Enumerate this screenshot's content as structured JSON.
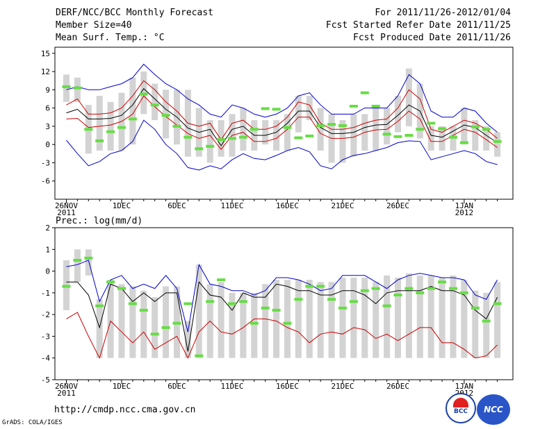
{
  "header": {
    "title": "DERF/NCC/BCC Monthly Forecast",
    "member_size": "Member Size=40",
    "variable": "Mean Surf. Temp.: °C",
    "period": "For 2011/11/26-2012/01/04",
    "refer_date": "Fcst Started Refer Date 2011/11/25",
    "produced_date": "Fcst Produced Date 2011/11/26"
  },
  "footer": {
    "url": "http://cmdp.ncc.cma.gov.cn",
    "credit": "GrADS: COLA/IGES",
    "logo_bcc": "BCC",
    "logo_ncc": "NCC"
  },
  "colors": {
    "max": "#0000cc",
    "mean": "#000000",
    "spread": "#cc0000",
    "box": "#d3d3d3",
    "median": "#66dd44"
  },
  "chart_data": [
    {
      "type": "line",
      "title": "Mean Surf. Temp.: °C",
      "x_tick_labels": [
        "26NOV\n2011",
        "1DEC",
        "6DEC",
        "11DEC",
        "16DEC",
        "21DEC",
        "26DEC",
        "1JAN\n2012"
      ],
      "ylim": [
        -9,
        16
      ],
      "y_ticks": [
        -6,
        -3,
        0,
        3,
        6,
        9,
        12,
        15
      ],
      "days": 40,
      "series": [
        {
          "name": "max",
          "values": [
            0.7,
            -1.5,
            -3.5,
            -2.8,
            -1.5,
            -1,
            0.5,
            4,
            2.5,
            0,
            -1.5,
            -3.8,
            -4.2,
            -3.5,
            -4,
            -2.5,
            -1.5,
            -2.3,
            -2.5,
            -1.8,
            -1,
            -0.5,
            -1.2,
            -3.5,
            -4,
            -2.5,
            -1.8,
            -1.5,
            -1,
            -0.5,
            0.3,
            0.6,
            0.5,
            -2.5,
            -2,
            -1.5,
            -1,
            -1.5,
            -2.8,
            -3.3
          ]
        },
        {
          "name": "q90",
          "values": [
            6.5,
            7.5,
            5,
            5,
            5.2,
            6,
            8,
            10.5,
            9,
            7,
            5.5,
            3.5,
            3,
            3.5,
            0.8,
            3.5,
            4,
            2.5,
            2.5,
            3,
            4.5,
            7,
            6.5,
            3.5,
            2.5,
            2.5,
            2.8,
            3.5,
            4,
            4.2,
            6,
            9,
            7.5,
            2.5,
            2,
            3,
            4,
            3.5,
            2.5,
            1
          ]
        },
        {
          "name": "mean",
          "values": [
            5.2,
            5.8,
            4.2,
            4.2,
            4.3,
            4.8,
            6.5,
            9.2,
            7.5,
            5.8,
            4.5,
            2.7,
            2,
            2.5,
            -0.2,
            2.5,
            3,
            1.5,
            1.5,
            2,
            3.5,
            5.5,
            5.5,
            2.8,
            1.8,
            1.8,
            2,
            2.8,
            3.2,
            3.3,
            4.8,
            6.5,
            5.5,
            1.5,
            1.2,
            2.2,
            3.2,
            2.8,
            1.5,
            0.3
          ]
        },
        {
          "name": "q10",
          "values": [
            4.2,
            4.3,
            2.8,
            3,
            3.2,
            3.8,
            5,
            8,
            6.2,
            4.6,
            3.2,
            1.8,
            1,
            1.5,
            -0.8,
            1.5,
            2,
            0.5,
            0.5,
            1,
            2.5,
            4.5,
            4.5,
            1.8,
            1,
            1,
            1.2,
            2,
            2.4,
            2.5,
            3.8,
            5.5,
            4.2,
            0.5,
            0.5,
            1.5,
            2.5,
            2,
            0.8,
            -0.5
          ]
        },
        {
          "name": "min",
          "values": [
            9,
            9.5,
            9,
            9,
            9.5,
            10,
            11,
            13.2,
            11.5,
            10,
            9,
            7.5,
            6.5,
            5,
            4.5,
            6.5,
            6,
            5,
            4.5,
            5,
            6,
            8,
            8.5,
            6.5,
            5,
            5,
            5,
            6,
            6,
            6,
            8,
            11.5,
            10,
            5.5,
            4.5,
            4.5,
            6,
            5.5,
            3.5,
            2
          ]
        }
      ],
      "boxes": [
        [
          7,
          11.5
        ],
        [
          7,
          11
        ],
        [
          -1.5,
          6.5
        ],
        [
          -1,
          8
        ],
        [
          -1,
          7
        ],
        [
          -1,
          8.5
        ],
        [
          0,
          11
        ],
        [
          5,
          12
        ],
        [
          4,
          10
        ],
        [
          1,
          9
        ],
        [
          0,
          9
        ],
        [
          -2,
          9
        ],
        [
          -2,
          6
        ],
        [
          -3,
          4
        ],
        [
          -2,
          4
        ],
        [
          -2,
          5
        ],
        [
          -1,
          6
        ],
        [
          -1,
          4
        ],
        [
          0,
          4
        ],
        [
          -1,
          4
        ],
        [
          -1,
          5
        ],
        [
          2,
          8
        ],
        [
          4,
          8
        ],
        [
          -1,
          6
        ],
        [
          -3,
          5
        ],
        [
          -3,
          4
        ],
        [
          -2,
          5
        ],
        [
          -1,
          5
        ],
        [
          -1,
          6
        ],
        [
          0,
          6
        ],
        [
          2,
          8
        ],
        [
          3,
          12.5
        ],
        [
          1,
          10
        ],
        [
          -1,
          3
        ],
        [
          -1,
          3
        ],
        [
          -1,
          3
        ],
        [
          0,
          6
        ],
        [
          -1,
          4
        ],
        [
          -1,
          3
        ],
        [
          -2,
          2
        ]
      ],
      "medians": [
        9.5,
        9.3,
        2.5,
        0.6,
        2.1,
        2.8,
        4.2,
        8.3,
        6.5,
        4.8,
        3,
        1.2,
        -0.7,
        -0.3,
        0.8,
        1,
        1.2,
        2.5,
        5.9,
        5.8,
        2.8,
        1.1,
        1.4,
        3.1,
        3.3,
        3.1,
        6.3,
        8.5,
        6.3,
        1.7,
        1.3,
        1.5,
        2.5,
        3.5,
        2.6,
        1.2,
        0.3,
        2.9,
        2.5,
        0.5
      ]
    },
    {
      "type": "line",
      "title": "Prec.: log(mm/d)",
      "x_tick_labels": [
        "26NOV\n2011",
        "1DEC",
        "6DEC",
        "11DEC",
        "16DEC",
        "21DEC",
        "26DEC",
        "1JAN\n2012"
      ],
      "ylim": [
        -5,
        2
      ],
      "y_ticks": [
        -5,
        -4,
        -3,
        -2,
        -1,
        0,
        1,
        2
      ],
      "days": 40,
      "series": [
        {
          "name": "max",
          "values": [
            0.2,
            0.3,
            0.5,
            -1.4,
            -0.4,
            -0.2,
            -0.8,
            -0.6,
            -0.8,
            -0.2,
            -0.8,
            -2.8,
            0.3,
            -0.6,
            -0.7,
            -0.9,
            -0.9,
            -1.1,
            -0.9,
            -0.3,
            -0.3,
            -0.4,
            -0.6,
            -0.9,
            -0.8,
            -0.2,
            -0.2,
            -0.2,
            -0.5,
            -0.8,
            -0.4,
            -0.2,
            -0.1,
            -0.2,
            -0.3,
            -0.3,
            -0.4,
            -1.1,
            -1.3,
            -0.4
          ]
        },
        {
          "name": "mean",
          "values": [
            -0.5,
            -0.5,
            -1.1,
            -2.6,
            -0.6,
            -0.8,
            -1.4,
            -1.0,
            -1.4,
            -1.0,
            -1.0,
            -3.7,
            -0.5,
            -1.1,
            -1.2,
            -1.8,
            -1.0,
            -1.2,
            -1.2,
            -0.6,
            -0.7,
            -0.9,
            -0.9,
            -1.1,
            -1.1,
            -0.9,
            -0.9,
            -1.1,
            -1.5,
            -1.0,
            -0.9,
            -0.9,
            -0.9,
            -0.7,
            -0.9,
            -0.9,
            -1.1,
            -1.8,
            -2.2,
            -1.2
          ]
        },
        {
          "name": "min",
          "values": [
            -2.2,
            -1.9,
            -3.0,
            -4.0,
            -2.3,
            -2.8,
            -3.3,
            -2.8,
            -3.6,
            -3.3,
            -3.0,
            -4.0,
            -2.8,
            -2.3,
            -2.8,
            -2.9,
            -2.6,
            -2.2,
            -2.2,
            -2.3,
            -2.6,
            -2.8,
            -3.3,
            -2.9,
            -2.8,
            -2.9,
            -2.6,
            -2.7,
            -3.1,
            -2.9,
            -3.2,
            -2.9,
            -2.6,
            -2.6,
            -3.3,
            -3.3,
            -3.6,
            -4.0,
            -3.9,
            -3.4
          ]
        }
      ],
      "boxes": [
        [
          -1.8,
          0.5
        ],
        [
          -0.5,
          1.0
        ],
        [
          -0.2,
          1.0
        ],
        [
          -4,
          -1.3
        ],
        [
          -4,
          -0.4
        ],
        [
          -4,
          -0.6
        ],
        [
          -4,
          -0.7
        ],
        [
          -4,
          -0.9
        ],
        [
          -4,
          -1.2
        ],
        [
          -4,
          -0.7
        ],
        [
          -4,
          -0.7
        ],
        [
          -4,
          -2.3
        ],
        [
          -4,
          0.3
        ],
        [
          -4,
          -0.6
        ],
        [
          -4,
          -0.5
        ],
        [
          -4,
          -1.0
        ],
        [
          -4,
          -1.0
        ],
        [
          -4,
          -1.0
        ],
        [
          -4,
          -0.6
        ],
        [
          -4,
          -0.4
        ],
        [
          -4,
          -0.4
        ],
        [
          -4,
          -0.4
        ],
        [
          -4,
          -0.4
        ],
        [
          -4,
          -0.5
        ],
        [
          -4,
          -0.5
        ],
        [
          -4,
          -0.3
        ],
        [
          -4,
          -0.3
        ],
        [
          -4,
          -0.3
        ],
        [
          -4,
          -0.5
        ],
        [
          -4,
          -0.2
        ],
        [
          -4,
          -0.3
        ],
        [
          -4,
          -0.1
        ],
        [
          -4,
          -0.2
        ],
        [
          -4,
          -0.2
        ],
        [
          -4,
          -0.3
        ],
        [
          -4,
          -0.2
        ],
        [
          -4,
          -0.4
        ],
        [
          -4,
          -0.9
        ],
        [
          -4,
          -1.0
        ],
        [
          -4,
          -0.5
        ]
      ],
      "medians": [
        -0.7,
        0.5,
        0.6,
        -1.6,
        -0.5,
        -0.8,
        -1.5,
        -1.8,
        -2.9,
        -2.6,
        -2.4,
        -1.5,
        -3.9,
        -1.4,
        -0.4,
        -1.5,
        -1.4,
        -2.4,
        -1.7,
        -1.8,
        -2.4,
        -1.3,
        -0.7,
        -0.7,
        -1.3,
        -1.7,
        -1.4,
        -0.9,
        -0.8,
        -1.6,
        -1.1,
        -0.8,
        -1.0,
        -0.8,
        -0.5,
        -0.8,
        -1.0,
        -1.7,
        -2.3,
        -1.5
      ]
    }
  ]
}
